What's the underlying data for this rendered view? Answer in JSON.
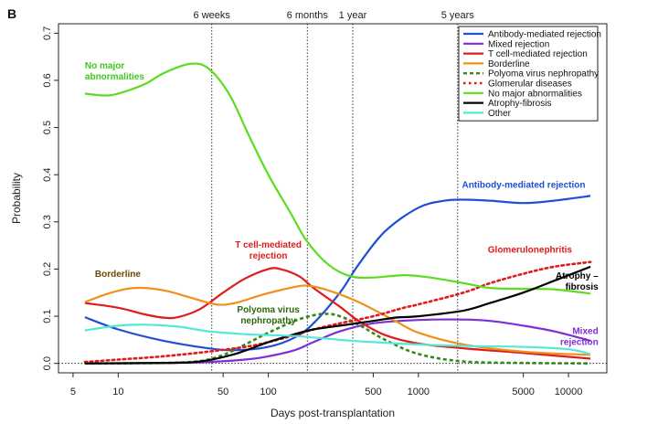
{
  "chart_data": {
    "type": "line",
    "panel_label": "B",
    "xlabel": "Days post-transplantation",
    "ylabel": "Probability",
    "x_scale": "log",
    "xlim": [
      4,
      18000
    ],
    "ylim": [
      -0.02,
      0.72
    ],
    "x_ticks": [
      5,
      10,
      50,
      100,
      500,
      1000,
      5000,
      10000
    ],
    "x_tick_labels": [
      "5",
      "10",
      "50",
      "100",
      "500",
      "1000",
      "5000",
      "10000"
    ],
    "y_ticks": [
      0.0,
      0.1,
      0.2,
      0.3,
      0.4,
      0.5,
      0.6,
      0.7
    ],
    "y_tick_labels": [
      "0.0",
      "0.1",
      "0.2",
      "0.3",
      "0.4",
      "0.5",
      "0.6",
      "0.7"
    ],
    "reference_lines": [
      {
        "x": 42,
        "label": "6 weeks"
      },
      {
        "x": 182,
        "label": "6 months"
      },
      {
        "x": 365,
        "label": "1 year"
      },
      {
        "x": 1826,
        "label": "5 years"
      }
    ],
    "zero_line": 0.0,
    "legend_position": "top-right",
    "series": [
      {
        "name": "Antibody-mediated rejection",
        "color": "#1f4fd6",
        "dash": "solid",
        "points": [
          [
            6,
            0.098
          ],
          [
            10,
            0.072
          ],
          [
            20,
            0.048
          ],
          [
            40,
            0.032
          ],
          [
            60,
            0.028
          ],
          [
            100,
            0.035
          ],
          [
            150,
            0.055
          ],
          [
            200,
            0.085
          ],
          [
            300,
            0.15
          ],
          [
            400,
            0.21
          ],
          [
            600,
            0.28
          ],
          [
            1000,
            0.33
          ],
          [
            1500,
            0.345
          ],
          [
            2000,
            0.347
          ],
          [
            3000,
            0.345
          ],
          [
            5000,
            0.34
          ],
          [
            8000,
            0.345
          ],
          [
            14000,
            0.355
          ]
        ]
      },
      {
        "name": "Mixed rejection",
        "color": "#7b2fd6",
        "dash": "solid",
        "points": [
          [
            6,
            0.0
          ],
          [
            20,
            0.001
          ],
          [
            40,
            0.003
          ],
          [
            70,
            0.008
          ],
          [
            100,
            0.015
          ],
          [
            150,
            0.028
          ],
          [
            200,
            0.045
          ],
          [
            300,
            0.068
          ],
          [
            500,
            0.085
          ],
          [
            1000,
            0.092
          ],
          [
            2000,
            0.093
          ],
          [
            3000,
            0.09
          ],
          [
            5000,
            0.08
          ],
          [
            8000,
            0.068
          ],
          [
            14000,
            0.048
          ]
        ]
      },
      {
        "name": "T cell-mediated rejection",
        "color": "#e01b1b",
        "dash": "solid",
        "points": [
          [
            6,
            0.128
          ],
          [
            10,
            0.118
          ],
          [
            15,
            0.104
          ],
          [
            20,
            0.097
          ],
          [
            25,
            0.098
          ],
          [
            35,
            0.115
          ],
          [
            50,
            0.15
          ],
          [
            70,
            0.18
          ],
          [
            100,
            0.2
          ],
          [
            120,
            0.2
          ],
          [
            160,
            0.185
          ],
          [
            200,
            0.16
          ],
          [
            300,
            0.12
          ],
          [
            400,
            0.09
          ],
          [
            600,
            0.06
          ],
          [
            1000,
            0.042
          ],
          [
            2000,
            0.032
          ],
          [
            5000,
            0.022
          ],
          [
            14000,
            0.01
          ]
        ]
      },
      {
        "name": "Borderline",
        "color": "#f0901a",
        "dash": "solid",
        "points": [
          [
            6,
            0.13
          ],
          [
            9,
            0.15
          ],
          [
            13,
            0.16
          ],
          [
            20,
            0.155
          ],
          [
            30,
            0.14
          ],
          [
            45,
            0.125
          ],
          [
            60,
            0.128
          ],
          [
            90,
            0.145
          ],
          [
            140,
            0.16
          ],
          [
            180,
            0.165
          ],
          [
            250,
            0.155
          ],
          [
            400,
            0.13
          ],
          [
            700,
            0.09
          ],
          [
            1000,
            0.065
          ],
          [
            2000,
            0.04
          ],
          [
            5000,
            0.025
          ],
          [
            14000,
            0.018
          ]
        ]
      },
      {
        "name": "Polyoma virus nephropathy",
        "color": "#2e8b1a",
        "dash": "dash",
        "points": [
          [
            6,
            0.0
          ],
          [
            20,
            0.001
          ],
          [
            35,
            0.005
          ],
          [
            50,
            0.018
          ],
          [
            70,
            0.04
          ],
          [
            100,
            0.065
          ],
          [
            150,
            0.09
          ],
          [
            200,
            0.102
          ],
          [
            250,
            0.105
          ],
          [
            300,
            0.1
          ],
          [
            400,
            0.082
          ],
          [
            600,
            0.05
          ],
          [
            1000,
            0.02
          ],
          [
            2000,
            0.004
          ],
          [
            5000,
            0.001
          ],
          [
            14000,
            0.0
          ]
        ]
      },
      {
        "name": "Glomerular diseases",
        "color": "#e01b1b",
        "dash": "dot",
        "points": [
          [
            6,
            0.003
          ],
          [
            10,
            0.008
          ],
          [
            20,
            0.015
          ],
          [
            40,
            0.025
          ],
          [
            70,
            0.035
          ],
          [
            100,
            0.045
          ],
          [
            150,
            0.06
          ],
          [
            200,
            0.072
          ],
          [
            300,
            0.085
          ],
          [
            500,
            0.1
          ],
          [
            800,
            0.118
          ],
          [
            1000,
            0.125
          ],
          [
            2000,
            0.15
          ],
          [
            3000,
            0.17
          ],
          [
            5000,
            0.19
          ],
          [
            8000,
            0.205
          ],
          [
            14000,
            0.215
          ]
        ]
      },
      {
        "name": "No major abnormalities",
        "color": "#5cdc1e",
        "dash": "solid",
        "points": [
          [
            6,
            0.572
          ],
          [
            8,
            0.568
          ],
          [
            10,
            0.572
          ],
          [
            15,
            0.592
          ],
          [
            20,
            0.615
          ],
          [
            30,
            0.635
          ],
          [
            40,
            0.625
          ],
          [
            55,
            0.57
          ],
          [
            75,
            0.48
          ],
          [
            100,
            0.4
          ],
          [
            140,
            0.32
          ],
          [
            180,
            0.26
          ],
          [
            250,
            0.21
          ],
          [
            350,
            0.185
          ],
          [
            500,
            0.182
          ],
          [
            800,
            0.187
          ],
          [
            1200,
            0.182
          ],
          [
            2000,
            0.17
          ],
          [
            3000,
            0.16
          ],
          [
            5000,
            0.158
          ],
          [
            8000,
            0.157
          ],
          [
            14000,
            0.148
          ]
        ]
      },
      {
        "name": "Atrophy-fibrosis",
        "color": "#000000",
        "dash": "solid",
        "points": [
          [
            6,
            0.0
          ],
          [
            20,
            0.001
          ],
          [
            35,
            0.004
          ],
          [
            60,
            0.02
          ],
          [
            100,
            0.045
          ],
          [
            150,
            0.062
          ],
          [
            200,
            0.072
          ],
          [
            300,
            0.08
          ],
          [
            500,
            0.09
          ],
          [
            700,
            0.097
          ],
          [
            1000,
            0.1
          ],
          [
            2000,
            0.112
          ],
          [
            3000,
            0.128
          ],
          [
            5000,
            0.15
          ],
          [
            8000,
            0.175
          ],
          [
            14000,
            0.205
          ]
        ]
      },
      {
        "name": "Other",
        "color": "#55e8d8",
        "dash": "solid",
        "points": [
          [
            6,
            0.07
          ],
          [
            10,
            0.08
          ],
          [
            15,
            0.082
          ],
          [
            25,
            0.078
          ],
          [
            40,
            0.068
          ],
          [
            70,
            0.062
          ],
          [
            100,
            0.06
          ],
          [
            150,
            0.058
          ],
          [
            200,
            0.055
          ],
          [
            300,
            0.05
          ],
          [
            500,
            0.045
          ],
          [
            1000,
            0.04
          ],
          [
            2000,
            0.037
          ],
          [
            5000,
            0.035
          ],
          [
            10000,
            0.03
          ],
          [
            14000,
            0.02
          ]
        ]
      }
    ],
    "annotations": [
      {
        "lines": [
          "No major",
          "abnormalities"
        ],
        "color": "#3cc81a",
        "x": 6.0,
        "y": 0.625,
        "anchor": "start"
      },
      {
        "lines": [
          "Borderline"
        ],
        "color": "#6a4a00",
        "x": 7.0,
        "y": 0.183,
        "anchor": "start"
      },
      {
        "lines": [
          "T cell-mediated",
          "rejection"
        ],
        "color": "#e01b1b",
        "x": 100,
        "y": 0.245,
        "anchor": "middle"
      },
      {
        "lines": [
          "Polyoma virus",
          "nephropathy"
        ],
        "color": "#2a6a0a",
        "x": 100,
        "y": 0.108,
        "anchor": "middle"
      },
      {
        "lines": [
          "Antibody-mediated  rejection"
        ],
        "color": "#1f4fd6",
        "x": 1950,
        "y": 0.372,
        "anchor": "start"
      },
      {
        "lines": [
          "Glomerulonephritis"
        ],
        "color": "#e01b1b",
        "x": 2900,
        "y": 0.235,
        "anchor": "start"
      },
      {
        "lines": [
          "Atrophy –",
          "fibrosis"
        ],
        "color": "#000000",
        "x": 15800,
        "y": 0.18,
        "anchor": "end"
      },
      {
        "lines": [
          "Mixed",
          "rejection"
        ],
        "color": "#7b2fd6",
        "x": 15800,
        "y": 0.062,
        "anchor": "end"
      }
    ]
  }
}
